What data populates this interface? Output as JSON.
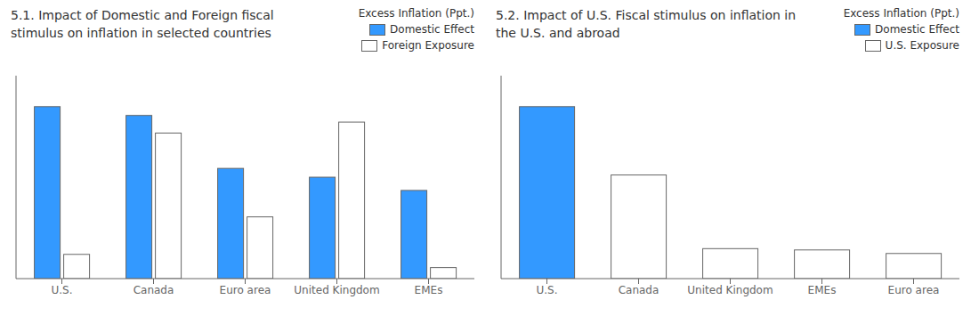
{
  "chart_data": [
    {
      "type": "bar",
      "title": "5.1. Impact of Domestic and Foreign fiscal\nstimulus on inflation in selected countries",
      "ylabel": "Excess Inflation (Ppt.)",
      "categories": [
        "U.S.",
        "Canada",
        "Euro area",
        "United Kingdom",
        "EMEs"
      ],
      "series": [
        {
          "name": "Domestic Effect",
          "color": "#3399FF",
          "values": [
            3.9,
            3.7,
            2.5,
            2.3,
            2.0
          ]
        },
        {
          "name": "Foreign Exposure",
          "color": "#FFFFFF",
          "values": [
            0.55,
            3.3,
            1.4,
            3.55,
            0.25
          ]
        }
      ],
      "ylim": [
        0,
        4.602
      ],
      "tick_labels": "x",
      "grid": false,
      "legend": "upper right"
    },
    {
      "type": "bar",
      "title": "5.2. Impact of U.S. Fiscal stimulus on inflation in\nthe U.S. and abroad",
      "ylabel": "Excess Inflation (Ppt.)",
      "categories": [
        "U.S.",
        "Canada",
        "United Kingdom",
        "EMEs",
        "Euro area"
      ],
      "series": [
        {
          "name": "Domestic Effect",
          "color": "#3399FF",
          "values": [
            3.9,
            0.0,
            0.0,
            0.0,
            0.0
          ]
        },
        {
          "name": "U.S. Exposure",
          "color": "#FFFFFF",
          "values": [
            0.0,
            2.35,
            0.68,
            0.65,
            0.57
          ]
        }
      ],
      "ylim": [
        0,
        4.602
      ],
      "tick_labels": "x",
      "grid": false,
      "legend": "upper right"
    }
  ]
}
